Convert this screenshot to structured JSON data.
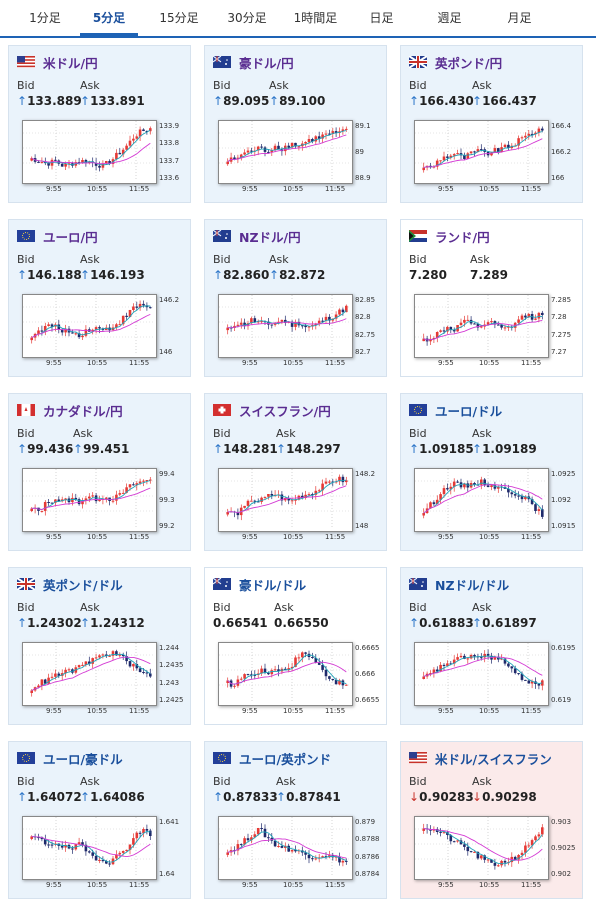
{
  "tabs": [
    "1分足",
    "5分足",
    "15分足",
    "30分足",
    "1時間足",
    "日足",
    "週足",
    "月足"
  ],
  "active_tab": "5分足",
  "cards": [
    {
      "pair": "米ドル/円",
      "flag": "us-jp-flag",
      "bid_label": "Bid",
      "ask_label": "Ask",
      "direction": "up",
      "bid": "133.889",
      "ask": "133.891",
      "y_ticks": [
        "133.9",
        "133.8",
        "133.7",
        "133.6"
      ],
      "x_ticks": [
        "9:55",
        "10:55",
        "11:55"
      ],
      "style": "blue"
    },
    {
      "pair": "豪ドル/円",
      "flag": "au-jp-flag",
      "bid_label": "Bid",
      "ask_label": "Ask",
      "direction": "up",
      "bid": "89.095",
      "ask": "89.100",
      "y_ticks": [
        "89.1",
        "89",
        "88.9"
      ],
      "x_ticks": [
        "9:55",
        "10:55",
        "11:55"
      ],
      "style": "blue"
    },
    {
      "pair": "英ポンド/円",
      "flag": "gb-jp-flag",
      "bid_label": "Bid",
      "ask_label": "Ask",
      "direction": "up",
      "bid": "166.430",
      "ask": "166.437",
      "y_ticks": [
        "166.4",
        "166.2",
        "166"
      ],
      "x_ticks": [
        "9:55",
        "10:55",
        "11:55"
      ],
      "style": "blue"
    },
    {
      "pair": "ユーロ/円",
      "flag": "eu-jp-flag",
      "bid_label": "Bid",
      "ask_label": "Ask",
      "direction": "up",
      "bid": "146.188",
      "ask": "146.193",
      "y_ticks": [
        "146.2",
        "146"
      ],
      "x_ticks": [
        "9:55",
        "10:55",
        "11:55"
      ],
      "style": "blue"
    },
    {
      "pair": "NZドル/円",
      "flag": "nz-jp-flag",
      "bid_label": "Bid",
      "ask_label": "Ask",
      "direction": "up",
      "bid": "82.860",
      "ask": "82.872",
      "y_ticks": [
        "82.85",
        "82.8",
        "82.75",
        "82.7"
      ],
      "x_ticks": [
        "9:55",
        "10:55",
        "11:55"
      ],
      "style": "blue"
    },
    {
      "pair": "ランド/円",
      "flag": "za-jp-flag",
      "bid_label": "Bid",
      "ask_label": "Ask",
      "direction": "none",
      "bid": "7.280",
      "ask": "7.289",
      "y_ticks": [
        "7.285",
        "7.28",
        "7.275",
        "7.27"
      ],
      "x_ticks": [
        "9:55",
        "10:55",
        "11:55"
      ],
      "style": "white"
    },
    {
      "pair": "カナダドル/円",
      "flag": "ca-jp-flag",
      "bid_label": "Bid",
      "ask_label": "Ask",
      "direction": "up",
      "bid": "99.436",
      "ask": "99.451",
      "y_ticks": [
        "99.4",
        "99.3",
        "99.2"
      ],
      "x_ticks": [
        "9:55",
        "10:55",
        "11:55"
      ],
      "style": "blue"
    },
    {
      "pair": "スイスフラン/円",
      "flag": "ch-jp-flag",
      "bid_label": "Bid",
      "ask_label": "Ask",
      "direction": "up",
      "bid": "148.281",
      "ask": "148.297",
      "y_ticks": [
        "148.2",
        "148"
      ],
      "x_ticks": [
        "9:55",
        "10:55",
        "11:55"
      ],
      "style": "blue"
    },
    {
      "pair": "ユーロ/ドル",
      "flag": "eu-us-flag",
      "bid_label": "Bid",
      "ask_label": "Ask",
      "direction": "up",
      "bid": "1.09185",
      "ask": "1.09189",
      "y_ticks": [
        "1.0925",
        "1.092",
        "1.0915"
      ],
      "x_ticks": [
        "9:55",
        "10:55",
        "11:55"
      ],
      "style": "blue"
    },
    {
      "pair": "英ポンド/ドル",
      "flag": "gb-us-flag",
      "bid_label": "Bid",
      "ask_label": "Ask",
      "direction": "up",
      "bid": "1.24302",
      "ask": "1.24312",
      "y_ticks": [
        "1.244",
        "1.2435",
        "1.243",
        "1.2425"
      ],
      "x_ticks": [
        "9:55",
        "10:55",
        "11:55"
      ],
      "style": "blue"
    },
    {
      "pair": "豪ドル/ドル",
      "flag": "au-us-flag",
      "bid_label": "Bid",
      "ask_label": "Ask",
      "direction": "none",
      "bid": "0.66541",
      "ask": "0.66550",
      "y_ticks": [
        "0.6665",
        "0.666",
        "0.6655"
      ],
      "x_ticks": [
        "9:55",
        "10:55",
        "11:55"
      ],
      "style": "white"
    },
    {
      "pair": "NZドル/ドル",
      "flag": "nz-us-flag",
      "bid_label": "Bid",
      "ask_label": "Ask",
      "direction": "up",
      "bid": "0.61883",
      "ask": "0.61897",
      "y_ticks": [
        "0.6195",
        "0.619"
      ],
      "x_ticks": [
        "9:55",
        "10:55",
        "11:55"
      ],
      "style": "blue"
    },
    {
      "pair": "ユーロ/豪ドル",
      "flag": "eu-au-flag",
      "bid_label": "Bid",
      "ask_label": "Ask",
      "direction": "up",
      "bid": "1.64072",
      "ask": "1.64086",
      "y_ticks": [
        "1.641",
        "1.64"
      ],
      "x_ticks": [
        "9:55",
        "10:55",
        "11:55"
      ],
      "style": "blue"
    },
    {
      "pair": "ユーロ/英ポンド",
      "flag": "eu-gb-flag",
      "bid_label": "Bid",
      "ask_label": "Ask",
      "direction": "up",
      "bid": "0.87833",
      "ask": "0.87841",
      "y_ticks": [
        "0.879",
        "0.8788",
        "0.8786",
        "0.8784"
      ],
      "x_ticks": [
        "9:55",
        "10:55",
        "11:55"
      ],
      "style": "blue"
    },
    {
      "pair": "米ドル/スイスフラン",
      "flag": "us-ch-flag",
      "bid_label": "Bid",
      "ask_label": "Ask",
      "direction": "down",
      "bid": "0.90283",
      "ask": "0.90298",
      "y_ticks": [
        "0.903",
        "0.9025",
        "0.902"
      ],
      "x_ticks": [
        "9:55",
        "10:55",
        "11:55"
      ],
      "style": "pink"
    }
  ],
  "colors": {
    "accent": "#1e63b5",
    "card_bg": "#eaf3fb",
    "card_alert_bg": "#fbeaea",
    "pair_purple": "#5a2d91",
    "pair_blue": "#1a4f9c",
    "candle_up": "#e53935",
    "candle_down": "#1f2a6b",
    "ma_short": "#1fa3b8",
    "ma_long": "#d43bd4"
  },
  "arrows": {
    "up": "↑",
    "down": "↓"
  }
}
